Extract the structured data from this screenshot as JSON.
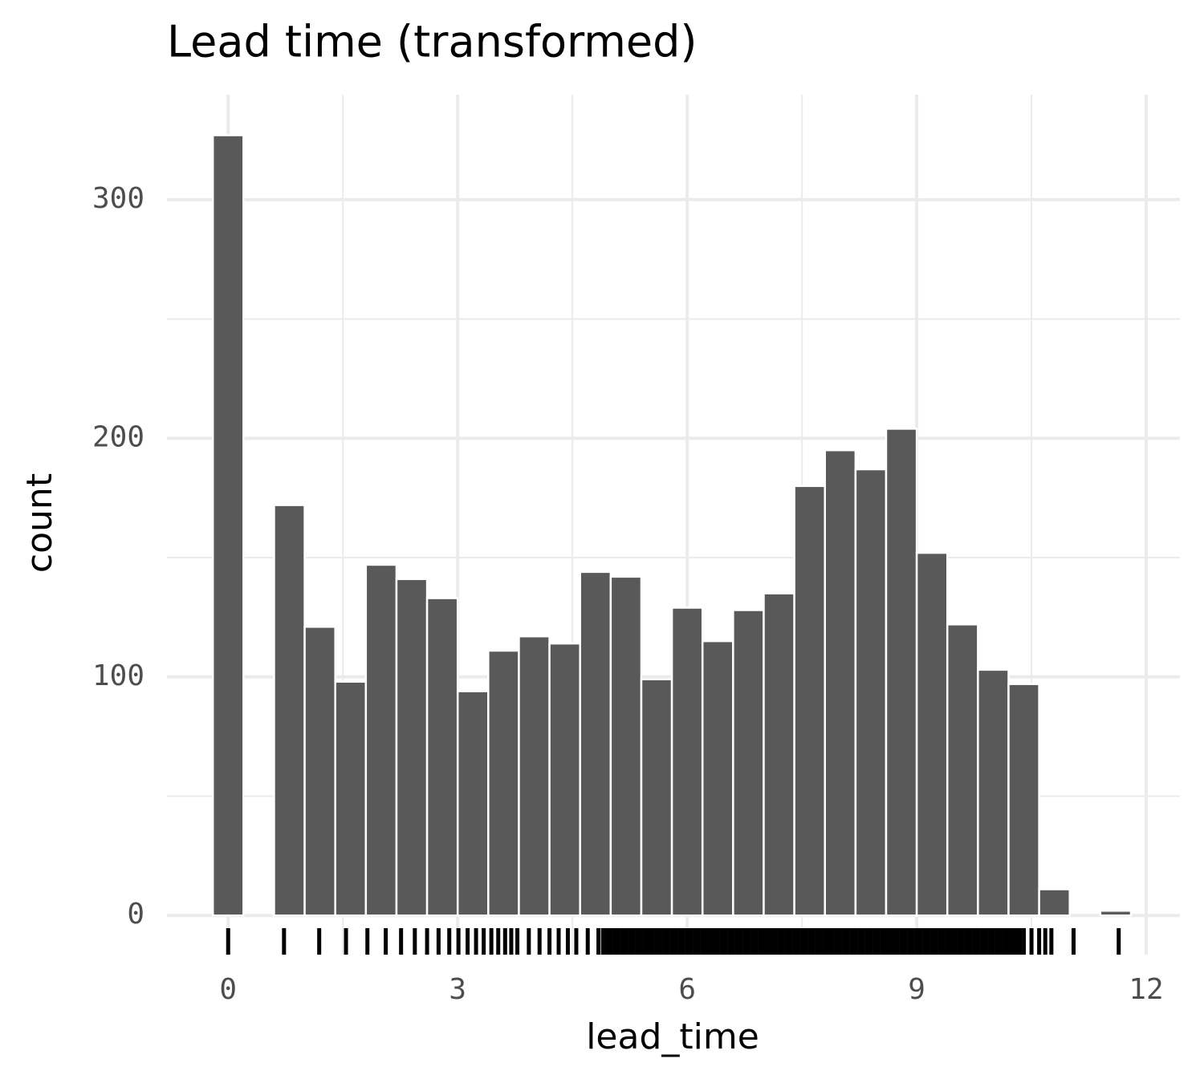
{
  "chart_data": {
    "type": "histogram",
    "title": "Lead time (transformed)",
    "x_label": "lead_time",
    "y_label": "count",
    "bins": [
      -0.2,
      0.2,
      0.6,
      1.0,
      1.4,
      1.8,
      2.2,
      2.6,
      3.0,
      3.4,
      3.8,
      4.2,
      4.6,
      5.0,
      5.4,
      5.8,
      6.2,
      6.6,
      7.0,
      7.4,
      7.8,
      8.2,
      8.6,
      9.0,
      9.4,
      9.8,
      10.2,
      10.6,
      11.0,
      11.4,
      11.8
    ],
    "values": [
      327,
      0,
      172,
      121,
      98,
      147,
      141,
      133,
      94,
      111,
      117,
      114,
      144,
      142,
      99,
      129,
      115,
      128,
      135,
      180,
      195,
      187,
      204,
      152,
      122,
      103,
      97,
      11,
      0,
      2
    ],
    "color": "#595959",
    "rug": [
      0,
      0.73,
      1.19,
      1.54,
      1.82,
      2.06,
      2.26,
      2.44,
      2.6,
      2.75,
      2.89,
      3.01,
      3.13,
      3.24,
      3.34,
      3.44,
      3.53,
      3.62,
      3.7,
      3.78,
      3.93,
      4.07,
      4.2,
      4.32,
      4.44,
      4.55,
      4.7,
      4.84,
      4.9,
      4.95,
      5.0,
      5.05,
      5.1,
      5.15,
      5.2,
      5.25,
      5.3,
      5.35,
      5.4,
      5.45,
      5.5,
      5.55,
      5.6,
      5.65,
      5.7,
      5.75,
      5.8,
      5.85,
      5.9,
      5.95,
      6.0,
      6.05,
      6.1,
      6.15,
      6.2,
      6.25,
      6.3,
      6.35,
      6.4,
      6.45,
      6.5,
      6.55,
      6.6,
      6.65,
      6.7,
      6.75,
      6.8,
      6.85,
      6.9,
      6.95,
      7.0,
      7.05,
      7.1,
      7.15,
      7.2,
      7.25,
      7.3,
      7.35,
      7.4,
      7.45,
      7.5,
      7.55,
      7.6,
      7.65,
      7.7,
      7.75,
      7.8,
      7.85,
      7.9,
      7.95,
      8.0,
      8.05,
      8.1,
      8.15,
      8.2,
      8.25,
      8.3,
      8.35,
      8.4,
      8.45,
      8.5,
      8.55,
      8.6,
      8.65,
      8.7,
      8.75,
      8.8,
      8.85,
      8.9,
      8.95,
      9.0,
      9.05,
      9.1,
      9.15,
      9.2,
      9.25,
      9.3,
      9.35,
      9.4,
      9.45,
      9.5,
      9.55,
      9.6,
      9.65,
      9.7,
      9.75,
      9.8,
      9.85,
      9.9,
      9.95,
      10.0,
      10.05,
      10.1,
      10.15,
      10.2,
      10.25,
      10.3,
      10.35,
      10.4,
      10.5,
      10.6,
      10.68,
      10.76,
      11.05,
      11.64
    ],
    "rug_color": "#000000",
    "xlim": [
      -0.8,
      12.44
    ],
    "xticks": [
      0,
      3,
      6,
      9,
      12
    ],
    "xminor": [
      1.5,
      4.5,
      7.5,
      10.5
    ],
    "ylim": [
      -16.4,
      344
    ],
    "yticks": [
      0,
      100,
      200,
      300
    ],
    "yminor": [
      50,
      150,
      250
    ],
    "grid": true
  }
}
